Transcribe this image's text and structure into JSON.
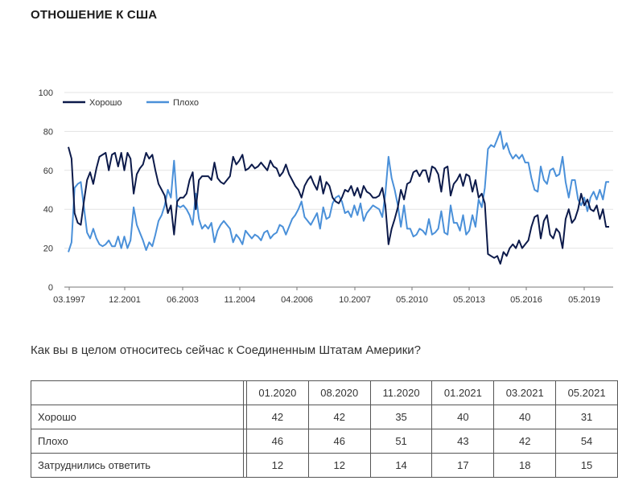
{
  "page": {
    "title": "ОТНОШЕНИЕ К США"
  },
  "chart_data": {
    "type": "line",
    "title": "",
    "xlabel": "",
    "ylabel": "",
    "ylim": [
      0,
      100
    ],
    "yticks": [
      0,
      20,
      40,
      60,
      80,
      100
    ],
    "xticks": [
      "03.1997",
      "12.2001",
      "06.2003",
      "11.2004",
      "04.2006",
      "10.2007",
      "05.2010",
      "05.2013",
      "05.2016",
      "05.2019"
    ],
    "legend_position": "top-left",
    "grid": true,
    "colors": {
      "good": "#0c1a4a",
      "bad": "#4a90d9"
    },
    "series": [
      {
        "name": "Хорошо",
        "values": [
          72,
          66,
          38,
          33,
          32,
          44,
          55,
          59,
          53,
          61,
          67,
          68,
          69,
          60,
          68,
          69,
          62,
          69,
          60,
          69,
          66,
          48,
          58,
          61,
          63,
          69,
          66,
          68,
          60,
          53,
          50,
          47,
          38,
          42,
          27,
          44,
          46,
          46,
          48,
          55,
          59,
          40,
          55,
          57,
          57,
          57,
          55,
          64,
          56,
          54,
          53,
          55,
          57,
          67,
          63,
          65,
          68,
          60,
          61,
          63,
          61,
          62,
          64,
          62,
          60,
          65,
          62,
          61,
          57,
          59,
          63,
          58,
          55,
          52,
          50,
          46,
          52,
          55,
          57,
          53,
          50,
          57,
          48,
          54,
          52,
          46,
          44,
          43,
          46,
          50,
          49,
          52,
          47,
          51,
          46,
          52,
          49,
          48,
          46,
          46,
          47,
          51,
          42,
          22,
          30,
          35,
          41,
          50,
          45,
          53,
          54,
          59,
          60,
          57,
          60,
          60,
          54,
          62,
          61,
          58,
          49,
          61,
          62,
          47,
          53,
          55,
          58,
          52,
          58,
          57,
          49,
          55,
          46,
          48,
          43,
          17,
          16,
          15,
          16,
          12,
          18,
          16,
          20,
          22,
          20,
          24,
          20,
          22,
          24,
          31,
          36,
          37,
          25,
          34,
          37,
          27,
          25,
          30,
          28,
          20,
          35,
          40,
          33,
          35,
          40,
          48,
          42,
          45,
          40,
          39,
          42,
          35,
          40,
          31,
          31
        ]
      },
      {
        "name": "Плохо",
        "values": [
          18,
          23,
          51,
          53,
          54,
          41,
          28,
          25,
          30,
          25,
          22,
          21,
          22,
          24,
          21,
          21,
          26,
          20,
          26,
          20,
          24,
          41,
          32,
          28,
          24,
          19,
          23,
          21,
          27,
          34,
          37,
          42,
          50,
          46,
          65,
          42,
          41,
          42,
          40,
          37,
          32,
          48,
          35,
          30,
          32,
          30,
          33,
          23,
          29,
          32,
          34,
          32,
          30,
          23,
          27,
          25,
          22,
          29,
          27,
          25,
          27,
          26,
          24,
          28,
          29,
          25,
          27,
          28,
          32,
          31,
          27,
          31,
          35,
          37,
          40,
          44,
          36,
          34,
          32,
          35,
          38,
          30,
          41,
          35,
          36,
          43,
          46,
          47,
          44,
          38,
          39,
          36,
          42,
          37,
          43,
          34,
          38,
          40,
          42,
          41,
          40,
          36,
          48,
          67,
          56,
          50,
          42,
          31,
          42,
          30,
          30,
          26,
          27,
          30,
          29,
          27,
          35,
          27,
          28,
          30,
          39,
          28,
          27,
          42,
          33,
          33,
          29,
          37,
          27,
          29,
          37,
          31,
          45,
          41,
          51,
          71,
          73,
          72,
          76,
          80,
          71,
          74,
          69,
          66,
          68,
          66,
          68,
          64,
          64,
          56,
          50,
          49,
          62,
          55,
          53,
          60,
          61,
          57,
          58,
          67,
          54,
          46,
          55,
          55,
          45,
          42,
          46,
          39,
          46,
          49,
          45,
          50,
          45,
          54,
          54
        ]
      }
    ]
  },
  "legend": {
    "good": "Хорошо",
    "bad": "Плохо"
  },
  "question": "Как вы в целом относитесь сейчас к Соединенным Штатам Америки?",
  "table": {
    "columns": [
      "01.2020",
      "08.2020",
      "11.2020",
      "01.2021",
      "03.2021",
      "05.2021"
    ],
    "rows": [
      {
        "label": "Хорошо",
        "values": [
          "42",
          "42",
          "35",
          "40",
          "40",
          "31"
        ]
      },
      {
        "label": "Плохо",
        "values": [
          "46",
          "46",
          "51",
          "43",
          "42",
          "54"
        ]
      },
      {
        "label": "Затруднились ответить",
        "values": [
          "12",
          "12",
          "14",
          "17",
          "18",
          "15"
        ]
      }
    ]
  }
}
